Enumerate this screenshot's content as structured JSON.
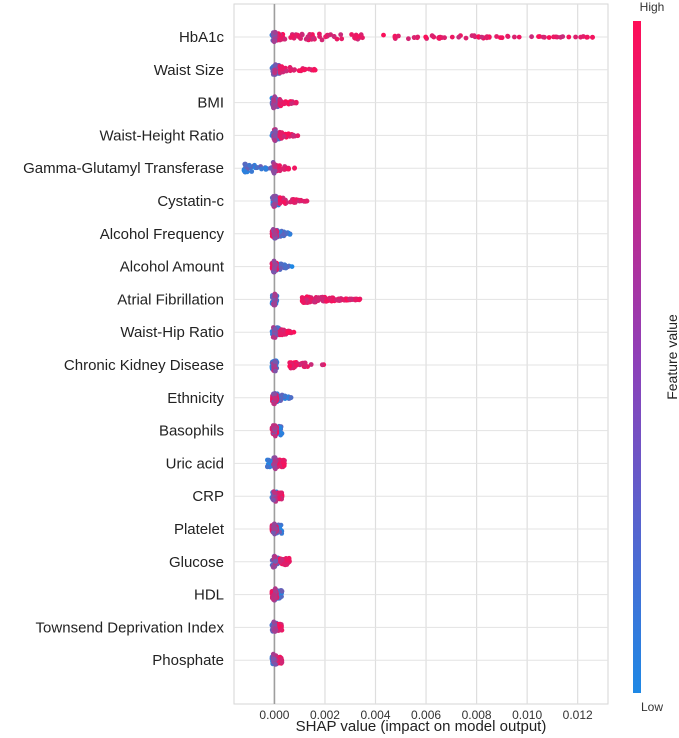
{
  "chart_data": {
    "type": "scatter",
    "subtype": "shap-beeswarm-summary",
    "xlabel": "SHAP value (impact on model output)",
    "xlim": [
      -0.0016,
      0.0132
    ],
    "xticks": [
      0.0,
      0.002,
      0.004,
      0.006,
      0.008,
      0.01,
      0.012
    ],
    "xtick_labels": [
      "0.000",
      "0.002",
      "0.004",
      "0.006",
      "0.008",
      "0.010",
      "0.012"
    ],
    "grid": "horizontal-and-vertical",
    "colorbar": {
      "title": "Feature value",
      "high_label": "High",
      "low_label": "Low",
      "low_color": "#1e88e5",
      "high_color": "#ff0d57"
    },
    "features": [
      {
        "name": "HbA1c",
        "low_range": [
          -0.0001,
          0.0001
        ],
        "high_range": [
          0.0001,
          0.0128
        ]
      },
      {
        "name": "Waist Size",
        "low_range": [
          -0.0001,
          0.0002
        ],
        "high_range": [
          0.0002,
          0.0018
        ]
      },
      {
        "name": "BMI",
        "low_range": [
          -0.0001,
          0.0002
        ],
        "high_range": [
          0.0002,
          0.0009
        ]
      },
      {
        "name": "Waist-Height Ratio",
        "low_range": [
          -0.0001,
          0.0002
        ],
        "high_range": [
          0.0002,
          0.001
        ]
      },
      {
        "name": "Gamma-Glutamyl Transferase",
        "low_range": [
          -0.0012,
          0.0
        ],
        "high_range": [
          0.0,
          0.0008
        ]
      },
      {
        "name": "Cystatin-c",
        "low_range": [
          -0.0001,
          0.0002
        ],
        "high_range": [
          0.0002,
          0.0013
        ]
      },
      {
        "name": "Alcohol Frequency",
        "low_range": [
          0.0,
          0.0007
        ],
        "high_range": [
          -0.0001,
          0.0001
        ]
      },
      {
        "name": "Alcohol Amount",
        "low_range": [
          0.0,
          0.0007
        ],
        "high_range": [
          -0.0001,
          0.0001
        ]
      },
      {
        "name": "Atrial Fibrillation",
        "low_range": [
          -0.0001,
          0.0001
        ],
        "high_range": [
          0.0011,
          0.0034
        ]
      },
      {
        "name": "Waist-Hip Ratio",
        "low_range": [
          -0.0001,
          0.0002
        ],
        "high_range": [
          0.0002,
          0.0008
        ]
      },
      {
        "name": "Chronic Kidney Disease",
        "low_range": [
          -0.0001,
          0.0001
        ],
        "high_range": [
          0.0006,
          0.0022
        ]
      },
      {
        "name": "Ethnicity",
        "low_range": [
          0.0001,
          0.0007
        ],
        "high_range": [
          -0.0001,
          0.0001
        ]
      },
      {
        "name": "Basophils",
        "low_range": [
          0.0,
          0.0003
        ],
        "high_range": [
          -0.0001,
          0.0001
        ]
      },
      {
        "name": "Uric acid",
        "low_range": [
          -0.0003,
          0.0001
        ],
        "high_range": [
          0.0001,
          0.0004
        ]
      },
      {
        "name": "CRP",
        "low_range": [
          -0.0001,
          0.0001
        ],
        "high_range": [
          0.0001,
          0.0003
        ]
      },
      {
        "name": "Platelet",
        "low_range": [
          0.0,
          0.0003
        ],
        "high_range": [
          -0.0001,
          0.0001
        ]
      },
      {
        "name": "Glucose",
        "low_range": [
          -0.0001,
          0.0002
        ],
        "high_range": [
          0.0002,
          0.0006
        ]
      },
      {
        "name": "HDL",
        "low_range": [
          0.0,
          0.0003
        ],
        "high_range": [
          -0.0001,
          0.0001
        ]
      },
      {
        "name": "Townsend Deprivation Index",
        "low_range": [
          -0.0001,
          0.0001
        ],
        "high_range": [
          0.0001,
          0.0003
        ]
      },
      {
        "name": "Phosphate",
        "low_range": [
          -0.0001,
          0.0001
        ],
        "high_range": [
          0.0001,
          0.0003
        ]
      }
    ]
  }
}
